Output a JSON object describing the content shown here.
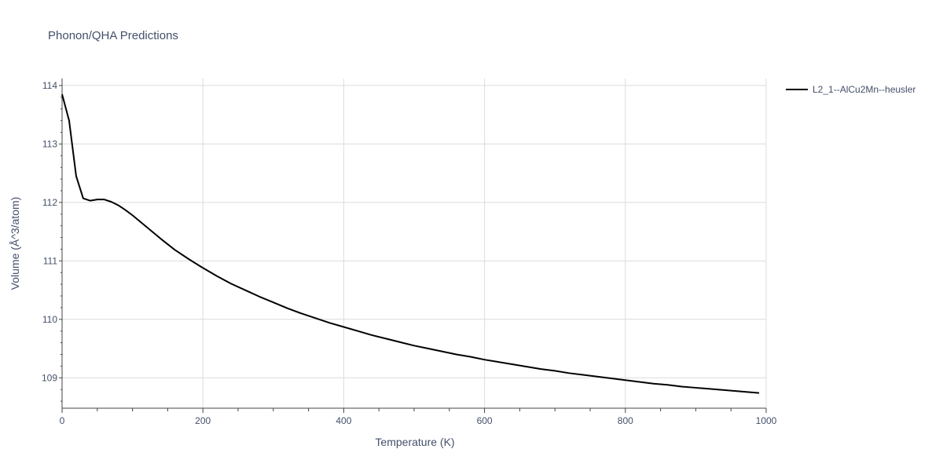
{
  "chart_data": {
    "type": "line",
    "title": "Phonon/QHA Predictions",
    "xlabel": "Temperature (K)",
    "ylabel": "Volume (Å^3/atom)",
    "xlim": [
      0,
      1000
    ],
    "ylim": [
      108.48,
      114.12
    ],
    "xticks": [
      0,
      200,
      400,
      600,
      800,
      1000
    ],
    "yticks": [
      109,
      110,
      111,
      112,
      113,
      114
    ],
    "grid": true,
    "legend_position": "top-right",
    "series": [
      {
        "name": "L2_1--AlCu2Mn--heusler",
        "color": "#000000",
        "x": [
          0,
          10,
          20,
          30,
          40,
          50,
          60,
          70,
          80,
          90,
          100,
          120,
          140,
          160,
          180,
          200,
          220,
          240,
          260,
          280,
          300,
          320,
          340,
          360,
          380,
          400,
          420,
          440,
          460,
          480,
          500,
          520,
          540,
          560,
          580,
          600,
          620,
          640,
          660,
          680,
          700,
          720,
          740,
          760,
          780,
          800,
          820,
          840,
          860,
          880,
          900,
          920,
          940,
          960,
          980,
          990
        ],
        "y": [
          113.85,
          113.4,
          112.45,
          112.07,
          112.03,
          112.05,
          112.05,
          112.01,
          111.95,
          111.87,
          111.78,
          111.58,
          111.38,
          111.19,
          111.03,
          110.88,
          110.74,
          110.61,
          110.5,
          110.39,
          110.29,
          110.19,
          110.1,
          110.02,
          109.94,
          109.87,
          109.8,
          109.73,
          109.67,
          109.61,
          109.55,
          109.5,
          109.45,
          109.4,
          109.36,
          109.31,
          109.27,
          109.23,
          109.19,
          109.15,
          109.12,
          109.08,
          109.05,
          109.02,
          108.99,
          108.96,
          108.93,
          108.9,
          108.88,
          108.85,
          108.83,
          108.81,
          108.79,
          108.77,
          108.75,
          108.74
        ]
      }
    ]
  }
}
